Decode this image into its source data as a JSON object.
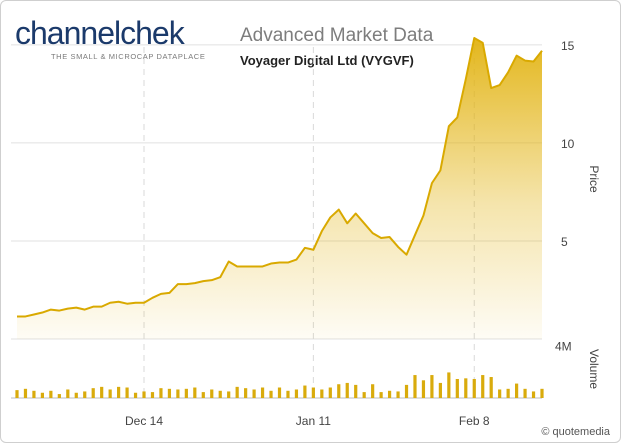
{
  "header": {
    "logo_part1": "channel",
    "logo_part2": "chek",
    "logo_tagline": "THE SMALL & MICROCAP DATAPLACE",
    "title": "Advanced Market Data",
    "subtitle": "Voyager Digital Ltd (VYGVF)"
  },
  "footer": {
    "credit": "© quotemedia"
  },
  "colors": {
    "accent": "#e2b311",
    "grid": "#e0e0e0",
    "logo_hi": "#e2b311"
  },
  "chart_data": {
    "type": "area",
    "price_axis_label": "Price",
    "volume_axis_label": "Volume",
    "price_ticks": [
      5,
      10,
      15
    ],
    "price_tick_labels": [
      "5",
      "10",
      "15"
    ],
    "volume_ticks": [
      4
    ],
    "volume_tick_labels": [
      "4M"
    ],
    "ylim_price": [
      0,
      15.3
    ],
    "ylim_volume": [
      0,
      4.5
    ],
    "x_ticks": [
      {
        "index": 15,
        "label": "Dec 14"
      },
      {
        "index": 35,
        "label": "Jan 11"
      },
      {
        "index": 54,
        "label": "Feb 8"
      }
    ],
    "price": [
      1.15,
      1.15,
      1.25,
      1.35,
      1.5,
      1.45,
      1.55,
      1.6,
      1.5,
      1.65,
      1.65,
      1.85,
      1.9,
      1.8,
      1.85,
      1.85,
      2.1,
      2.3,
      2.35,
      2.8,
      2.8,
      2.85,
      2.95,
      3.0,
      3.15,
      3.95,
      3.7,
      3.7,
      3.7,
      3.7,
      3.85,
      3.9,
      3.9,
      4.05,
      4.65,
      4.55,
      5.5,
      6.2,
      6.6,
      5.9,
      6.4,
      5.9,
      5.4,
      5.15,
      5.2,
      4.7,
      4.3,
      5.3,
      6.3,
      7.95,
      8.6,
      10.85,
      11.3,
      13.25,
      15.35,
      15.1,
      12.8,
      12.95,
      13.6,
      14.45,
      14.2,
      14.15,
      14.7
    ],
    "volume": [
      0.6,
      0.7,
      0.55,
      0.4,
      0.55,
      0.3,
      0.65,
      0.4,
      0.5,
      0.75,
      0.85,
      0.65,
      0.85,
      0.8,
      0.4,
      0.5,
      0.45,
      0.75,
      0.7,
      0.65,
      0.7,
      0.8,
      0.45,
      0.65,
      0.55,
      0.5,
      0.85,
      0.75,
      0.65,
      0.8,
      0.55,
      0.8,
      0.55,
      0.65,
      0.95,
      0.8,
      0.65,
      0.8,
      1.05,
      1.15,
      1.0,
      0.45,
      1.05,
      0.45,
      0.55,
      0.5,
      1.0,
      1.75,
      1.35,
      1.75,
      1.15,
      1.95,
      1.45,
      1.5,
      1.45,
      1.75,
      1.6,
      0.65,
      0.7,
      1.1,
      0.7,
      0.5,
      0.7
    ]
  }
}
